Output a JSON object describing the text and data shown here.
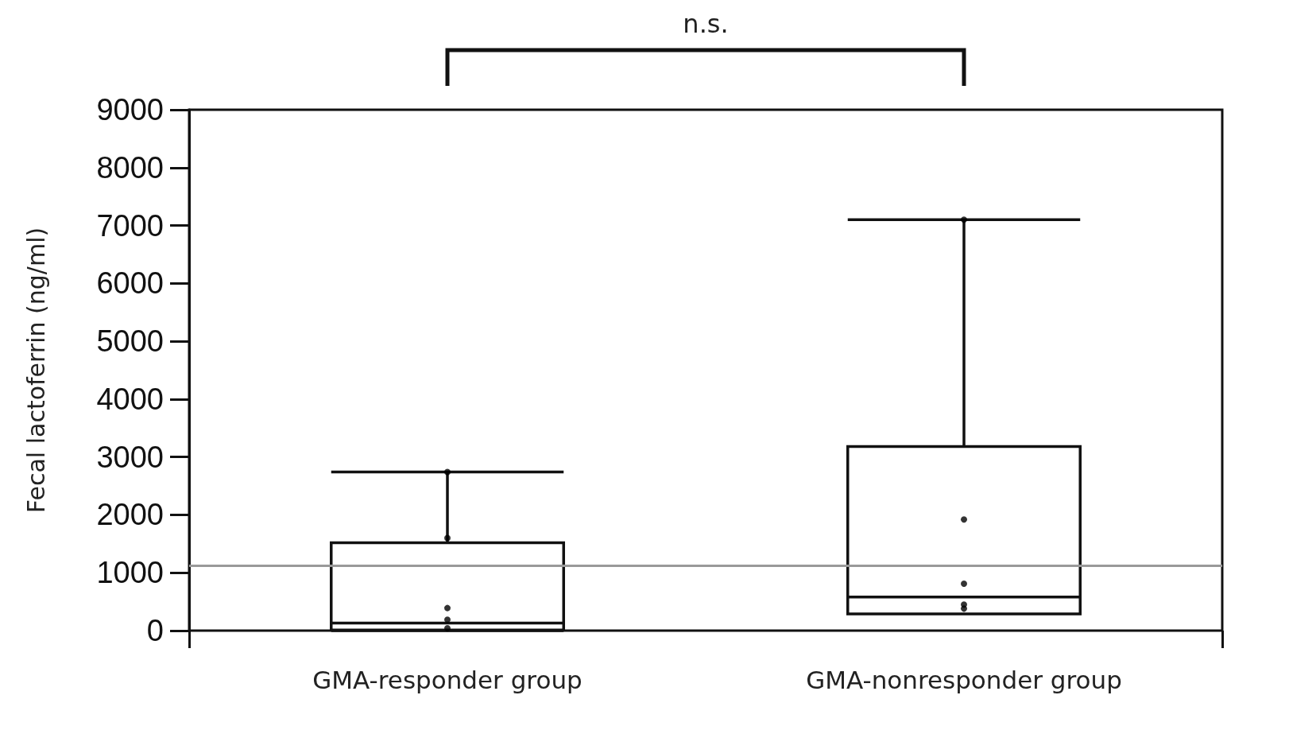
{
  "chart_data": {
    "type": "box",
    "ylabel": "Fecal lactoferrin (ng/ml)",
    "categories": [
      "GMA-responder group",
      "GMA-nonresponder group"
    ],
    "boxes": [
      {
        "low": 0,
        "q1": 10,
        "median": 130,
        "q3": 1520,
        "high": 2740
      },
      {
        "low": 290,
        "q1": 290,
        "median": 580,
        "q3": 3180,
        "high": 7100
      }
    ],
    "series": [
      {
        "type": "scatter",
        "color": "#000000",
        "x": [
          "GMA-responder group",
          "GMA-responder group",
          "GMA-responder group",
          "GMA-responder group",
          "GMA-responder group",
          "GMA-nonresponder group",
          "GMA-nonresponder group",
          "GMA-nonresponder group",
          "GMA-nonresponder group",
          "GMA-nonresponder group"
        ],
        "values": [
          2740,
          1600,
          390,
          190,
          40,
          7100,
          1920,
          810,
          450,
          380
        ]
      }
    ],
    "ylim": [
      0,
      9000
    ],
    "yticks": [
      0,
      1000,
      2000,
      3000,
      4000,
      5000,
      6000,
      7000,
      8000,
      9000
    ],
    "ref_lines": [
      {
        "axis": "y",
        "value": 1120,
        "color": "#999999"
      }
    ],
    "annotations": [
      "n.s."
    ],
    "grid": false,
    "legend": false,
    "marker": "circle"
  }
}
